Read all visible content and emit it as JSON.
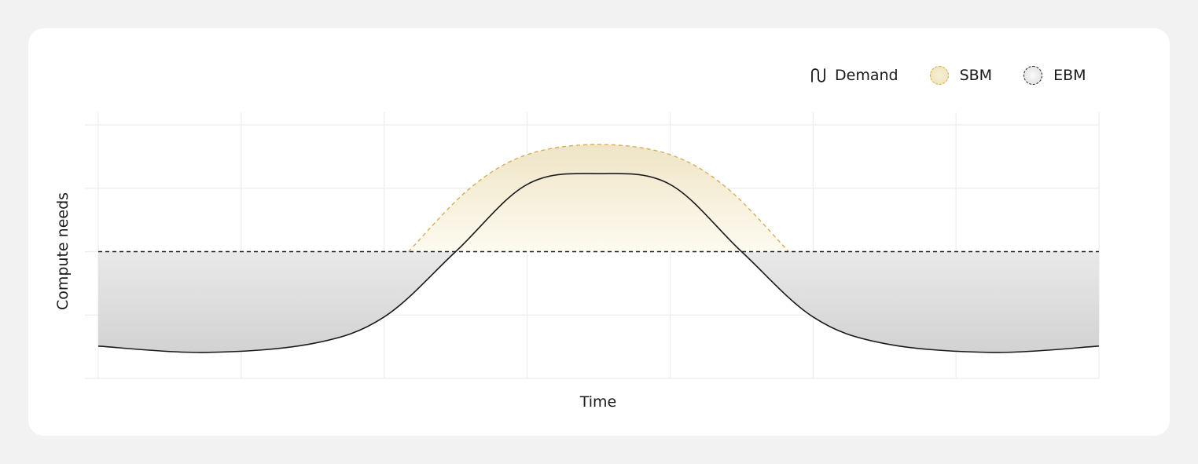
{
  "chart_data": {
    "type": "area",
    "title": "",
    "xlabel": "Time",
    "ylabel": "Compute needs",
    "xlim": [
      0,
      7
    ],
    "ylim": [
      0,
      4
    ],
    "grid": true,
    "legend_position": "top-right",
    "series": [
      {
        "name": "Demand",
        "style": "solid line",
        "color": "#1a1a1a",
        "x": [
          0,
          0.74,
          1.5,
          2,
          2.5,
          3,
          3.5,
          4,
          4.5,
          5,
          5.5,
          6.26,
          7
        ],
        "y": [
          0.51,
          0.41,
          0.55,
          0.97,
          2.0,
          3.06,
          3.23,
          3.06,
          2.0,
          0.97,
          0.55,
          0.41,
          0.51
        ]
      },
      {
        "name": "SBM",
        "style": "dashed line with fill",
        "color": "#d2a94f",
        "fill": "#efe3bd",
        "x": [
          2.17,
          2.6,
          3,
          3.5,
          4,
          4.4,
          4.83
        ],
        "y": [
          2.0,
          3.0,
          3.53,
          3.69,
          3.53,
          3.0,
          2.0
        ]
      },
      {
        "name": "EBM",
        "style": "dashed line with fill",
        "color": "#222222",
        "fill": "#d4d4d4",
        "x": [
          0,
          7
        ],
        "y": [
          2.0,
          2.0
        ]
      }
    ]
  },
  "legend": {
    "demand": "Demand",
    "sbm": "SBM",
    "ebm": "EBM"
  }
}
